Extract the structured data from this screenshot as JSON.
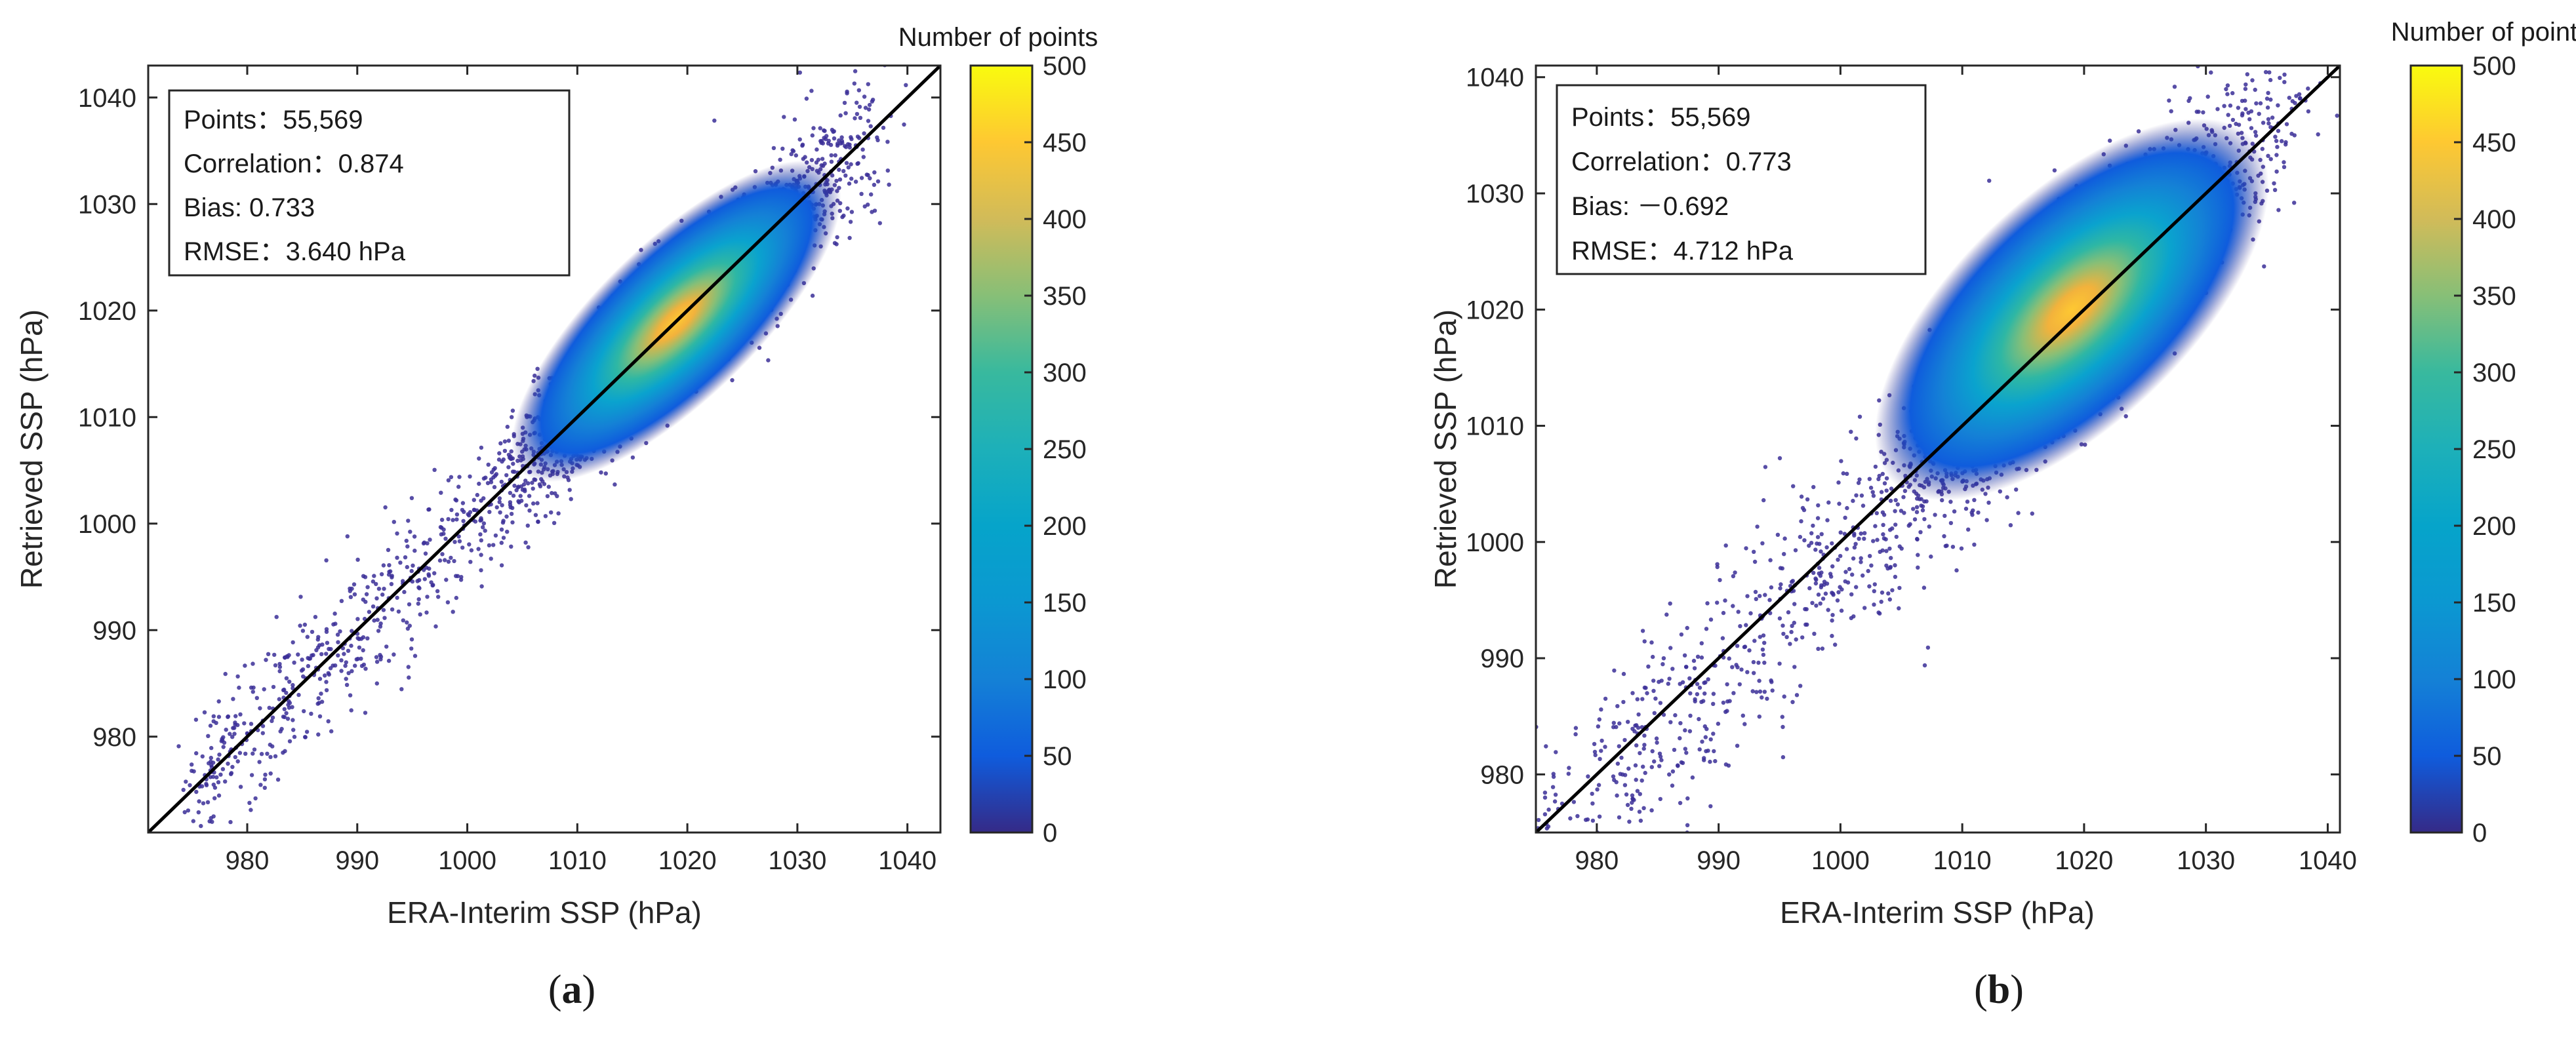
{
  "chart_data": [
    {
      "type": "scatter",
      "panel_label": "(a)",
      "label_letter": "a",
      "xlabel": "ERA-Interim SSP (hPa)",
      "ylabel": "Retrieved SSP (hPa)",
      "xlim": [
        971,
        1043
      ],
      "ylim": [
        971,
        1043
      ],
      "xticks": [
        980,
        990,
        1000,
        1010,
        1020,
        1030,
        1040
      ],
      "yticks": [
        980,
        990,
        1000,
        1010,
        1020,
        1030,
        1040
      ],
      "one_to_one_line": true,
      "stats": {
        "points": "Points：55,569",
        "correlation": "Correlation：0.874",
        "bias": "Bias: 0.733",
        "rmse": "RMSE：3.640 hPa"
      },
      "density_center": [
        1019,
        1019
      ],
      "colorbar": {
        "title": "Number of points",
        "min": 0,
        "max": 500,
        "ticks": [
          0,
          50,
          100,
          150,
          200,
          250,
          300,
          350,
          400,
          450,
          500
        ]
      }
    },
    {
      "type": "scatter",
      "panel_label": "(b)",
      "label_letter": "b",
      "xlabel": "ERA-Interim SSP (hPa)",
      "ylabel": "Retrieved SSP (hPa)",
      "xlim": [
        975,
        1041
      ],
      "ylim": [
        975,
        1041
      ],
      "xticks": [
        980,
        990,
        1000,
        1010,
        1020,
        1030,
        1040
      ],
      "yticks": [
        980,
        990,
        1000,
        1010,
        1020,
        1030,
        1040
      ],
      "one_to_one_line": true,
      "stats": {
        "points": "Points：55,569",
        "correlation": "Correlation：0.773",
        "bias": "Bias: －0.692",
        "rmse": "RMSE：4.712 hPa"
      },
      "density_center": [
        1019,
        1020
      ],
      "colorbar": {
        "title": "Number of points",
        "min": 0,
        "max": 500,
        "ticks": [
          0,
          50,
          100,
          150,
          200,
          250,
          300,
          350,
          400,
          450,
          500
        ]
      }
    }
  ],
  "colors": {
    "parula_dark": "#352A87",
    "parula_blue": "#0F5CDD",
    "parula_cyan": "#1481D6",
    "parula_teal": "#06A4CA",
    "parula_green": "#2EB7A4",
    "parula_lime": "#87BF77",
    "parula_orange": "#D1BB59",
    "parula_gold": "#FEC832",
    "parula_yellow": "#F9FB0E",
    "text": "#262626",
    "axis": "#262626",
    "line": "#000000"
  }
}
